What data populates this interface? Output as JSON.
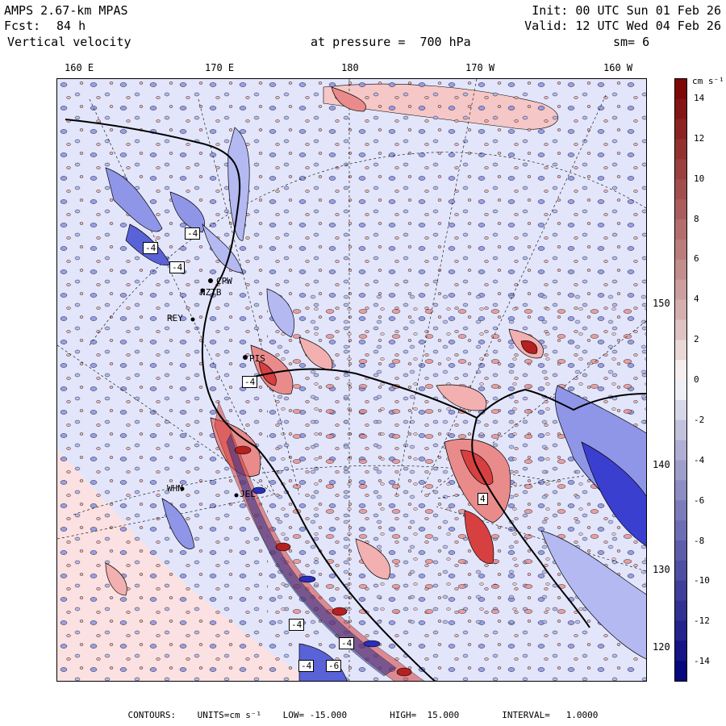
{
  "header": {
    "model": "AMPS 2.67-km MPAS",
    "fcst_label": "Fcst:",
    "fcst_value": "84 h",
    "variable": "Vertical velocity",
    "level": "at pressure =  700 hPa",
    "init": "Init: 00 UTC Sun 01 Feb 26",
    "valid": "Valid: 12 UTC Wed 04 Feb 26",
    "smoothing": "sm= 6"
  },
  "longitude_labels": [
    "160 E",
    "170 E",
    "180",
    "170 W",
    "160 W"
  ],
  "latitude_labels": [
    "150 W",
    "140 W",
    "130 W",
    "120 W"
  ],
  "stations": [
    "CPW",
    "NZTB",
    "REY",
    "PIS",
    "WHN",
    "JEL"
  ],
  "contour_boxes": [
    "-4",
    "-4",
    "-4",
    "-4",
    "-4",
    "-4",
    "-4",
    "-6",
    "4"
  ],
  "colorbar": {
    "units": "cm s⁻¹",
    "ticks": [
      "14",
      "12",
      "10",
      "8",
      "6",
      "4",
      "2",
      "0",
      "-2",
      "-4",
      "-6",
      "-8",
      "-10",
      "-12",
      "-14"
    ],
    "min": -15,
    "max": 15,
    "negative_color": "#00007a",
    "positive_color": "#7a0000",
    "zero_color": "#ffffff"
  },
  "footer": {
    "contours": "CONTOURS:",
    "units": "UNITS=cm s⁻¹",
    "low": "LOW= -15.000",
    "high": "HIGH=  15.000",
    "interval": "INTERVAL=   1.0000"
  }
}
